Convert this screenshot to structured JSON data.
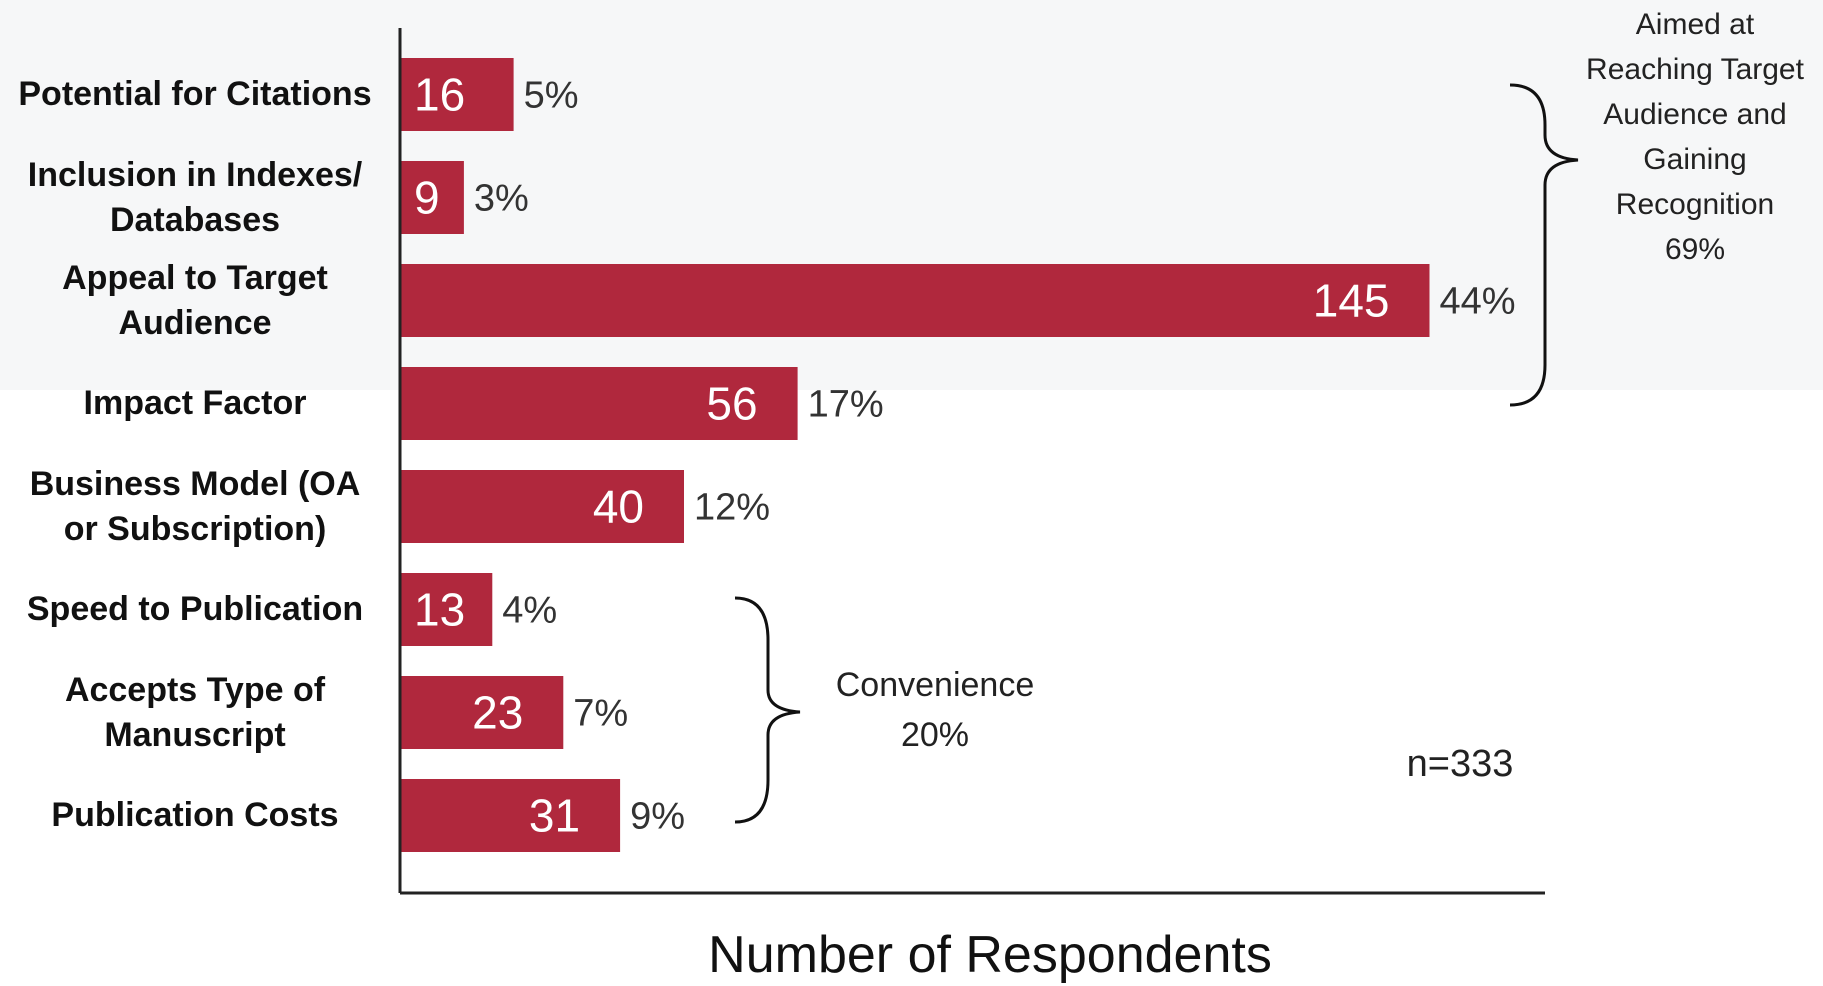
{
  "chart_data": {
    "type": "bar",
    "orientation": "horizontal",
    "categories": [
      "Potential for Citations",
      "Inclusion in Indexes/ Databases",
      "Appeal to Target Audience",
      "Impact Factor",
      "Business Model (OA or Subscription)",
      "Speed to Publication",
      "Accepts Type of Manuscript",
      "Publication Costs"
    ],
    "category_label_lines": [
      [
        "Potential for Citations"
      ],
      [
        "Inclusion in Indexes/",
        "Databases"
      ],
      [
        "Appeal to Target",
        "Audience"
      ],
      [
        "Impact Factor"
      ],
      [
        "Business Model (OA",
        "or Subscription)"
      ],
      [
        "Speed to Publication"
      ],
      [
        "Accepts Type of",
        "Manuscript"
      ],
      [
        "Publication Costs"
      ]
    ],
    "values": [
      16,
      9,
      145,
      56,
      40,
      13,
      23,
      31
    ],
    "percent_labels": [
      "5%",
      "3%",
      "44%",
      "17%",
      "12%",
      "4%",
      "7%",
      "9%"
    ],
    "xlabel": "Number of Respondents",
    "ylabel": "",
    "xlim": [
      0,
      160
    ],
    "grid": false,
    "bar_color": "#b0283d",
    "annotations": {
      "group_recognition": [
        "Aimed at",
        "Reaching Target",
        "Audience and",
        "Gaining",
        "Recognition",
        "69%"
      ],
      "group_convenience": [
        "Convenience",
        "20%"
      ],
      "sample_size": "n=333"
    }
  }
}
